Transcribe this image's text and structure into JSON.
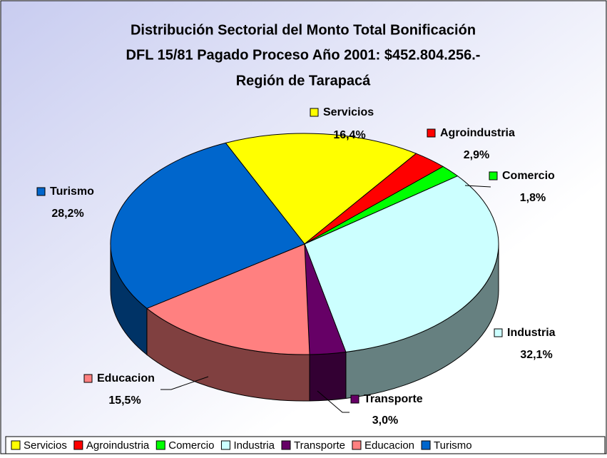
{
  "chart_data": {
    "type": "pie3d",
    "title": [
      "Distribución Sectorial del Monto Total Bonificación",
      "DFL 15/81 Pagado Proceso Año 2001: $452.804.256.-",
      "Región de Tarapacá"
    ],
    "categories": [
      "Servicios",
      "Agroindustria",
      "Comercio",
      "Industria",
      "Transporte",
      "Educacion",
      "Turismo"
    ],
    "values": [
      16.4,
      2.9,
      1.8,
      32.1,
      3.0,
      15.5,
      28.2
    ],
    "value_labels": [
      "16,4%",
      "2,9%",
      "1,8%",
      "32,1%",
      "3,0%",
      "15,5%",
      "28,2%"
    ],
    "colors": [
      "#ffff00",
      "#ff0000",
      "#00ff00",
      "#ccffff",
      "#660066",
      "#ff8080",
      "#0066cc"
    ],
    "legend": "bottom"
  }
}
